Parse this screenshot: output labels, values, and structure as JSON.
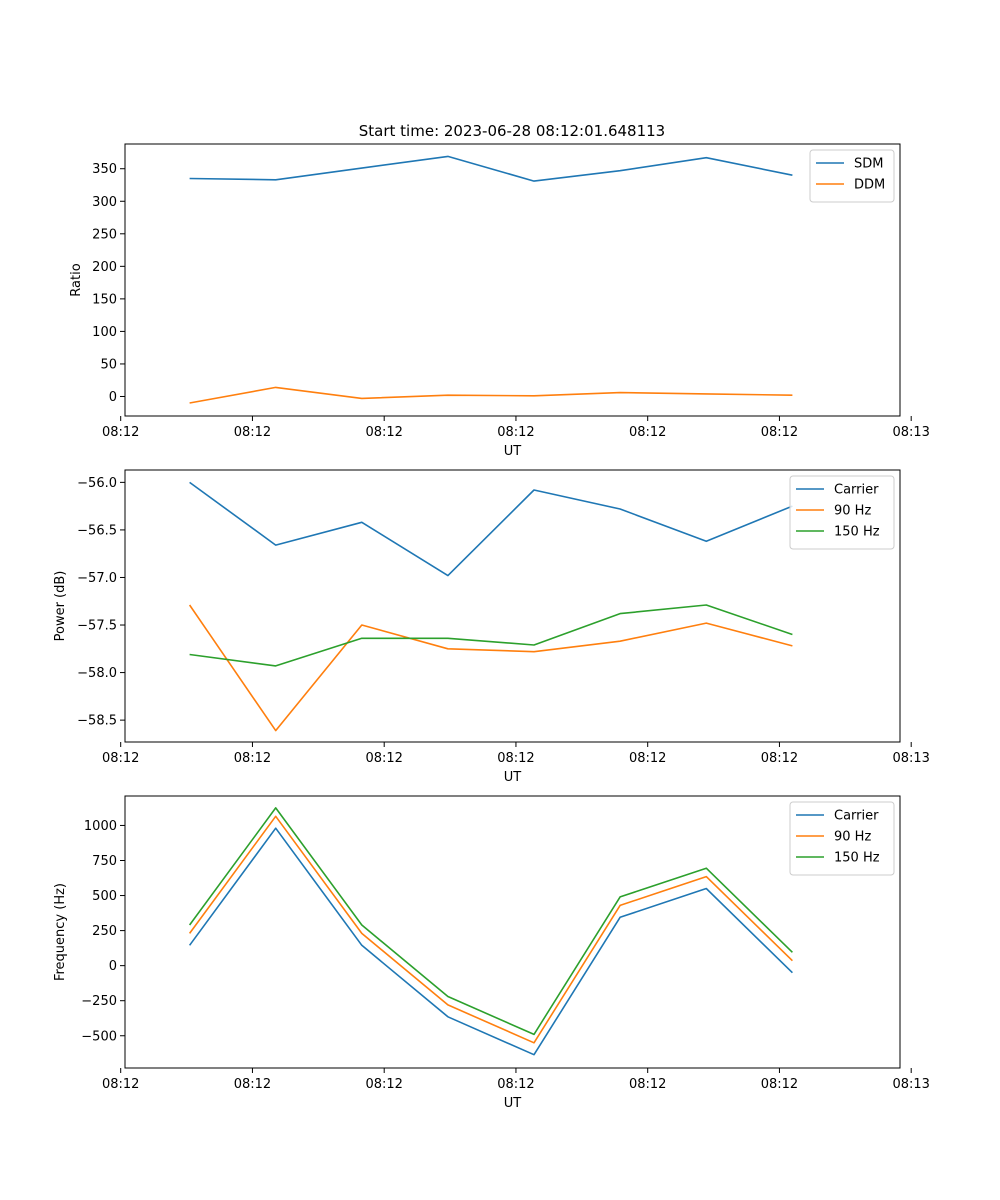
{
  "figure": {
    "title": "Start time: 2023-06-28 08:12:01.648113"
  },
  "chart_data": [
    {
      "type": "line",
      "title": "",
      "xlabel": "UT",
      "ylabel": "Ratio",
      "x": [
        1,
        2,
        3,
        4,
        5,
        6,
        7,
        8
      ],
      "xlim": [
        0.25,
        9.25
      ],
      "xticks": [
        0.2,
        1.73,
        3.26,
        4.79,
        6.32,
        7.85,
        9.38
      ],
      "xtick_labels": [
        "08:12",
        "08:12",
        "08:12",
        "08:12",
        "08:12",
        "08:12",
        "08:13"
      ],
      "ylim": [
        -30,
        388
      ],
      "yticks": [
        0,
        50,
        100,
        150,
        200,
        250,
        300,
        350
      ],
      "ytick_labels": [
        "0",
        "50",
        "100",
        "150",
        "200",
        "250",
        "300",
        "350"
      ],
      "legend": "top-right",
      "grid": false,
      "series": [
        {
          "name": "SDM",
          "color": "#1f77b4",
          "values": [
            335,
            333,
            351,
            369,
            331,
            347,
            367,
            340
          ]
        },
        {
          "name": "DDM",
          "color": "#ff7f0e",
          "values": [
            -10,
            14,
            -3,
            2,
            1,
            6,
            4,
            2
          ]
        }
      ]
    },
    {
      "type": "line",
      "title": "",
      "xlabel": "UT",
      "ylabel": "Power (dB)",
      "x": [
        1,
        2,
        3,
        4,
        5,
        6,
        7,
        8
      ],
      "xlim": [
        0.25,
        9.25
      ],
      "xticks": [
        0.2,
        1.73,
        3.26,
        4.79,
        6.32,
        7.85,
        9.38
      ],
      "xtick_labels": [
        "08:12",
        "08:12",
        "08:12",
        "08:12",
        "08:12",
        "08:12",
        "08:13"
      ],
      "ylim": [
        -58.73,
        -55.87
      ],
      "yticks": [
        -56.0,
        -56.5,
        -57.0,
        -57.5,
        -58.0,
        -58.5
      ],
      "ytick_labels": [
        "−56.0",
        "−56.5",
        "−57.0",
        "−57.5",
        "−58.0",
        "−58.5"
      ],
      "legend": "top-right",
      "grid": false,
      "series": [
        {
          "name": "Carrier",
          "color": "#1f77b4",
          "values": [
            -56.0,
            -56.66,
            -56.42,
            -56.98,
            -56.08,
            -56.28,
            -56.62,
            -56.25
          ]
        },
        {
          "name": "90 Hz",
          "color": "#ff7f0e",
          "values": [
            -57.29,
            -58.61,
            -57.5,
            -57.75,
            -57.78,
            -57.67,
            -57.48,
            -57.72
          ]
        },
        {
          "name": "150 Hz",
          "color": "#2ca02c",
          "values": [
            -57.81,
            -57.93,
            -57.64,
            -57.64,
            -57.71,
            -57.38,
            -57.29,
            -57.6
          ]
        }
      ]
    },
    {
      "type": "line",
      "title": "",
      "xlabel": "UT",
      "ylabel": "Frequency (Hz)",
      "x": [
        1,
        2,
        3,
        4,
        5,
        6,
        7,
        8
      ],
      "xlim": [
        0.25,
        9.25
      ],
      "xticks": [
        0.2,
        1.73,
        3.26,
        4.79,
        6.32,
        7.85,
        9.38
      ],
      "xtick_labels": [
        "08:12",
        "08:12",
        "08:12",
        "08:12",
        "08:12",
        "08:12",
        "08:13"
      ],
      "ylim": [
        -730,
        1210
      ],
      "yticks": [
        1000,
        750,
        500,
        250,
        0,
        -250,
        -500
      ],
      "ytick_labels": [
        "1000",
        "750",
        "500",
        "250",
        "0",
        "−250",
        "−500"
      ],
      "legend": "top-right",
      "grid": false,
      "series": [
        {
          "name": "Carrier",
          "color": "#1f77b4",
          "values": [
            145,
            980,
            145,
            -365,
            -635,
            345,
            550,
            -50
          ]
        },
        {
          "name": "90 Hz",
          "color": "#ff7f0e",
          "values": [
            230,
            1065,
            230,
            -280,
            -550,
            430,
            635,
            35
          ]
        },
        {
          "name": "150 Hz",
          "color": "#2ca02c",
          "values": [
            290,
            1125,
            290,
            -220,
            -490,
            490,
            695,
            95
          ]
        }
      ]
    }
  ]
}
